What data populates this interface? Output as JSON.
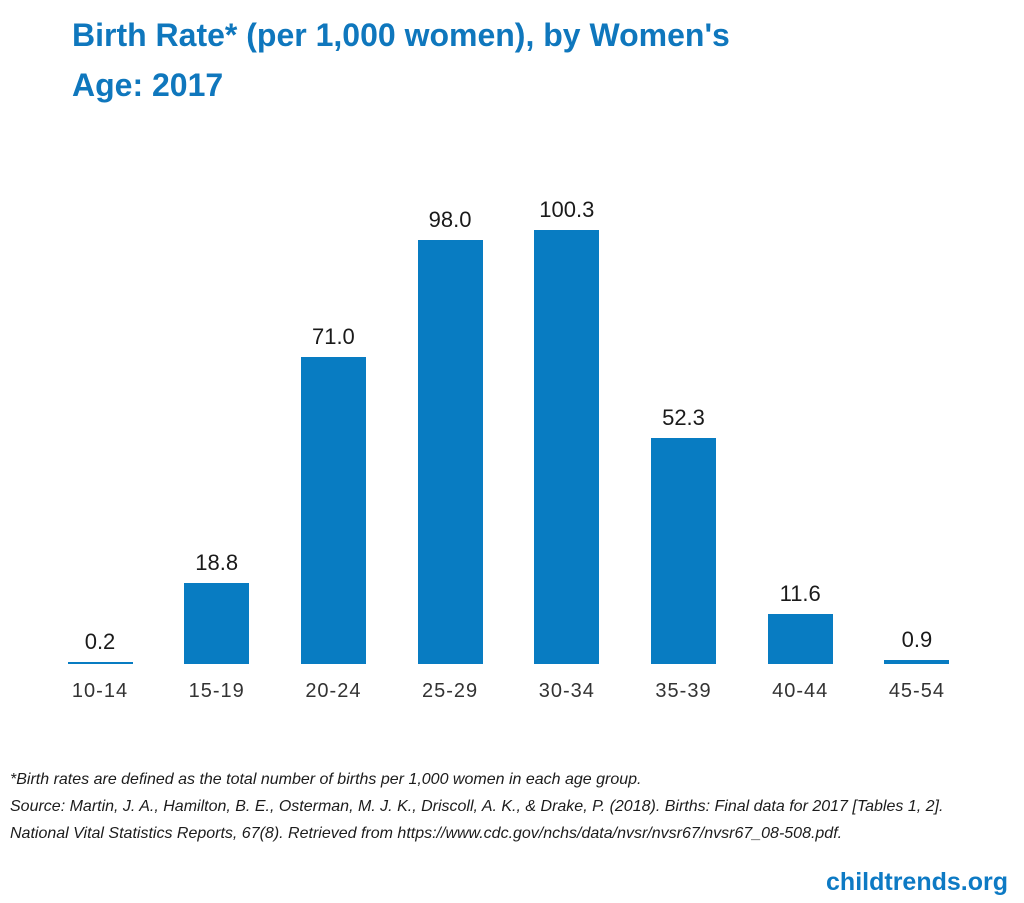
{
  "header": {
    "title_line1": "Birth Rate* (per 1,000 women), by Women's",
    "title_line2": "Age: 2017",
    "title_full": "Birth Rate* (per 1,000 women), by Women's Age: 2017"
  },
  "chart_data": {
    "type": "bar",
    "title": "Birth Rate* (per 1,000 women), by Women's Age: 2017",
    "categories": [
      "10-14",
      "15-19",
      "20-24",
      "25-29",
      "30-34",
      "35-39",
      "40-44",
      "45-54"
    ],
    "values": [
      0.2,
      18.8,
      71.0,
      98.0,
      100.3,
      52.3,
      11.6,
      0.9
    ],
    "value_labels": [
      "0.2",
      "18.8",
      "71.0",
      "98.0",
      "100.3",
      "52.3",
      "11.6",
      "0.9"
    ],
    "xlabel": "",
    "ylabel": "",
    "ylim": [
      0,
      105
    ],
    "grid": false,
    "legend": false,
    "axis_lines": false,
    "bar_color": "#087cc2",
    "label_color": "#1a1a1a",
    "tick_label_color": "#333333"
  },
  "colors": {
    "title_blue": "#0f77bd",
    "brand_blue": "#0d7ac4",
    "background": "#ffffff"
  },
  "footnotes": {
    "line1": "*Birth rates are defined as the total number of births per 1,000 women in each age group.",
    "line2": "Source: Martin, J. A., Hamilton, B. E., Osterman, M. J. K., Driscoll, A. K., & Drake, P. (2018). Births: Final data for 2017 [Tables 1, 2].",
    "line3": "National Vital Statistics Reports, 67(8). Retrieved from https://www.cdc.gov/nchs/data/nvsr/nvsr67/nvsr67_08-508.pdf."
  },
  "footer": {
    "brand": "childtrends.org"
  }
}
